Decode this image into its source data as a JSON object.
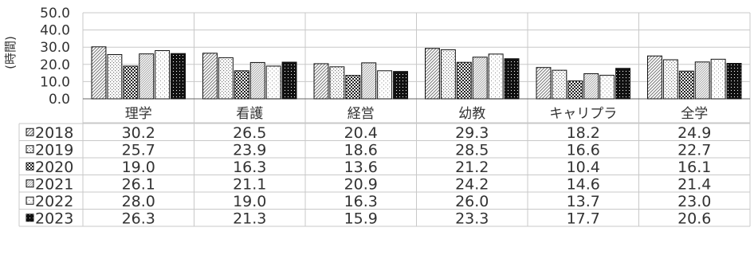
{
  "chart_data": {
    "type": "bar",
    "title": "",
    "xlabel": "",
    "ylabel": "(時間)",
    "ylim": [
      0,
      50
    ],
    "yticks": [
      "0.0",
      "10.0",
      "20.0",
      "30.0",
      "40.0",
      "50.0"
    ],
    "grid": true,
    "legend": "data-table",
    "categories": [
      "理学",
      "看護",
      "経営",
      "幼教",
      "キャリプラ",
      "全学"
    ],
    "series": [
      {
        "name": "2018",
        "values": [
          30.2,
          26.5,
          20.4,
          29.3,
          18.2,
          24.9
        ],
        "labels": [
          "30.2",
          "26.5",
          "20.4",
          "29.3",
          "18.2",
          "24.9"
        ],
        "pattern": "diag"
      },
      {
        "name": "2019",
        "values": [
          25.7,
          23.9,
          18.6,
          28.5,
          16.6,
          22.7
        ],
        "labels": [
          "25.7",
          "23.9",
          "18.6",
          "28.5",
          "16.6",
          "22.7"
        ],
        "pattern": "dots"
      },
      {
        "name": "2020",
        "values": [
          19.0,
          16.3,
          13.6,
          21.2,
          10.4,
          16.1
        ],
        "labels": [
          "19.0",
          "16.3",
          "13.6",
          "21.2",
          "10.4",
          "16.1"
        ],
        "pattern": "check"
      },
      {
        "name": "2021",
        "values": [
          26.1,
          21.1,
          20.9,
          24.2,
          14.6,
          21.4
        ],
        "labels": [
          "26.1",
          "21.1",
          "20.9",
          "24.2",
          "14.6",
          "21.4"
        ],
        "pattern": "diag2"
      },
      {
        "name": "2022",
        "values": [
          28.0,
          19.0,
          16.3,
          26.0,
          13.7,
          23.0
        ],
        "labels": [
          "28.0",
          "19.0",
          "16.3",
          "26.0",
          "13.7",
          "23.0"
        ],
        "pattern": "sparse"
      },
      {
        "name": "2023",
        "values": [
          26.3,
          21.3,
          15.9,
          23.3,
          17.7,
          20.6
        ],
        "labels": [
          "26.3",
          "21.3",
          "15.9",
          "23.3",
          "17.7",
          "20.6"
        ],
        "pattern": "dark"
      }
    ]
  }
}
